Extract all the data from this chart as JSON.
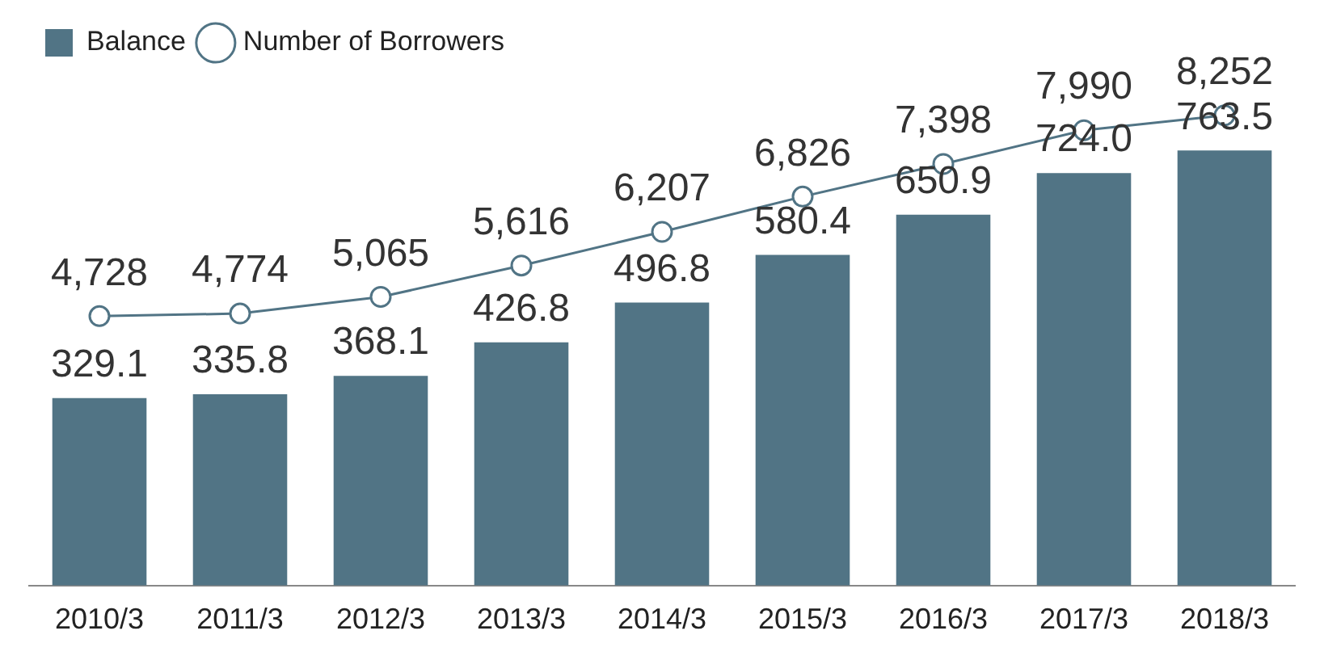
{
  "chart_data": {
    "type": "bar",
    "categories": [
      "2010/3",
      "2011/3",
      "2012/3",
      "2013/3",
      "2014/3",
      "2015/3",
      "2016/3",
      "2017/3",
      "2018/3"
    ],
    "series": [
      {
        "name": "Balance",
        "color": "#517485",
        "values": [
          329.1,
          335.8,
          368.1,
          426.8,
          496.8,
          580.4,
          650.9,
          724.0,
          763.5
        ],
        "value_labels": [
          "329.1",
          "335.8",
          "368.1",
          "426.8",
          "496.8",
          "580.4",
          "650.9",
          "724.0",
          "763.5"
        ]
      },
      {
        "name": "Number of Borrowers",
        "type": "line",
        "axis": "y2",
        "color": "#517485",
        "marker": "circle",
        "values": [
          4728,
          4774,
          5065,
          5616,
          6207,
          6826,
          7398,
          7990,
          8252
        ],
        "value_labels": [
          "4,728",
          "4,774",
          "5,065",
          "5,616",
          "6,207",
          "6,826",
          "7,398",
          "7,990",
          "8,252"
        ]
      }
    ],
    "legend": "top left",
    "grid": false,
    "tick_labels": "x"
  }
}
